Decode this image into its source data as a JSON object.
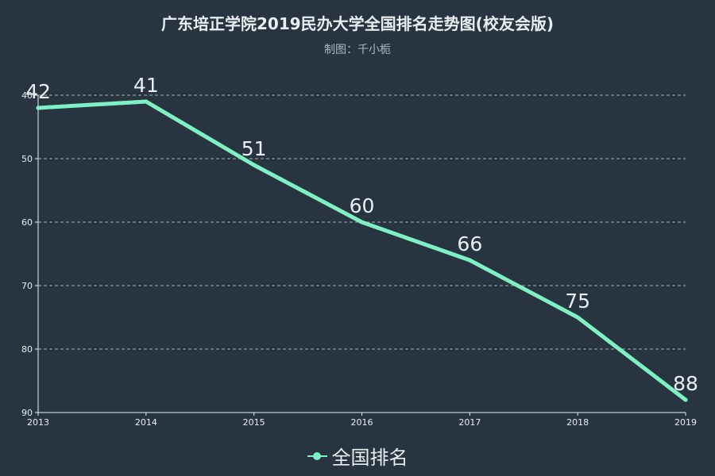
{
  "title": "广东培正学院2019民办大学全国排名走势图(校友会版)",
  "subtitle": "制图：千小栀",
  "colors": {
    "background": "#283540",
    "series": "#7ef0c4",
    "axis": "#e9eef2",
    "grid": "#c6ccd2"
  },
  "legend": {
    "label": "全国排名"
  },
  "chart_data": {
    "type": "line",
    "x": [
      "2013",
      "2014",
      "2015",
      "2016",
      "2017",
      "2018",
      "2019"
    ],
    "series": [
      {
        "name": "全国排名",
        "values": [
          42,
          41,
          51,
          60,
          66,
          75,
          88
        ]
      }
    ],
    "ylim": [
      40,
      90
    ],
    "y_inverted": true,
    "yticks": [
      40,
      50,
      60,
      70,
      80,
      90
    ],
    "grid": true,
    "legend_position": "bottom",
    "data_labels": true
  }
}
